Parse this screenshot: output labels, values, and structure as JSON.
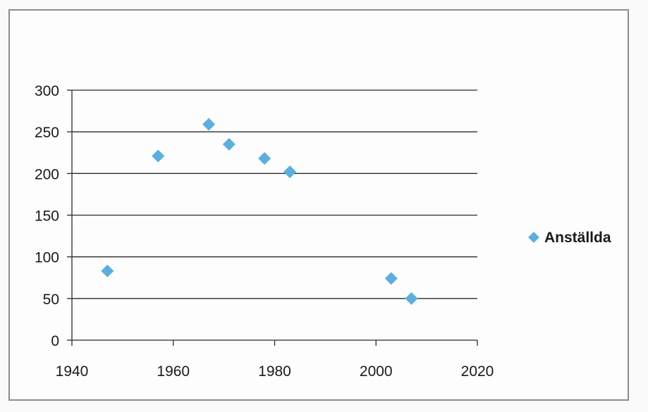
{
  "chart_data": {
    "type": "scatter",
    "title": "",
    "xlabel": "",
    "ylabel": "",
    "xlim": [
      1940,
      2020
    ],
    "ylim": [
      0,
      300
    ],
    "xticks": [
      1940,
      1960,
      1980,
      2000,
      2020
    ],
    "yticks": [
      0,
      50,
      100,
      150,
      200,
      250,
      300
    ],
    "grid": "horizontal",
    "legend_position": "right",
    "series": [
      {
        "name": "Anställda",
        "color": "#5aafe0",
        "marker": "diamond",
        "points": [
          {
            "x": 1947,
            "y": 83
          },
          {
            "x": 1957,
            "y": 221
          },
          {
            "x": 1967,
            "y": 259
          },
          {
            "x": 1971,
            "y": 235
          },
          {
            "x": 1978,
            "y": 218
          },
          {
            "x": 1983,
            "y": 202
          },
          {
            "x": 2003,
            "y": 74
          },
          {
            "x": 2007,
            "y": 50
          }
        ]
      }
    ]
  }
}
